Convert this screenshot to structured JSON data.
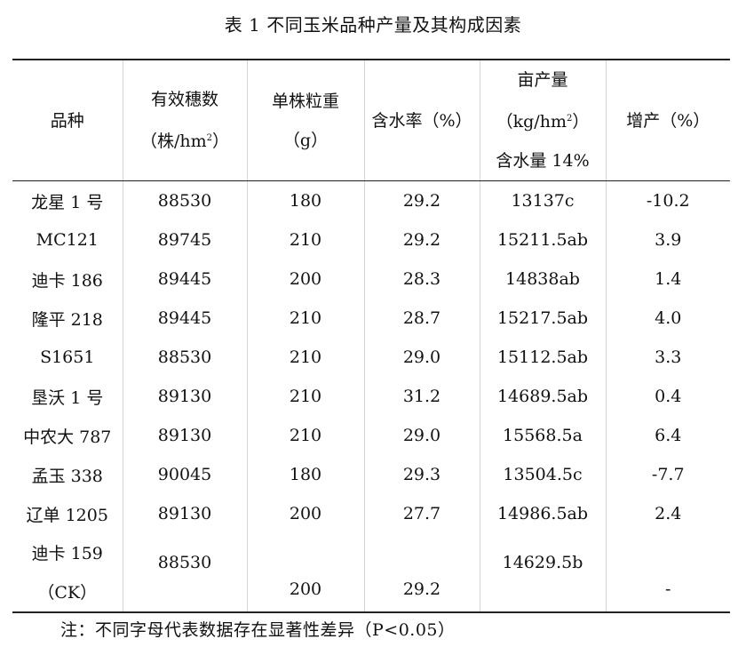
{
  "caption": "表 1 不同玉米品种产量及其构成因素",
  "header": {
    "variety": "品种",
    "ears": {
      "line1": "有效穗数",
      "line2_pre": "（株/hm",
      "line2_sup": "2",
      "line2_post": "）"
    },
    "grain_weight": {
      "line1": "单株粒重",
      "line2": "（g）"
    },
    "moisture": "含水率（%）",
    "yield": {
      "line1": "亩产量",
      "line2_pre": "（kg/hm",
      "line2_sup": "2",
      "line2_post": "）",
      "line3": "含水量 14%"
    },
    "increase": "增产（%）"
  },
  "rows": [
    {
      "variety": "龙星 1 号",
      "ears": "88530",
      "grain_weight": "180",
      "moisture": "29.2",
      "yield": "13137c",
      "increase": "-10.2"
    },
    {
      "variety": "MC121",
      "ears": "89745",
      "grain_weight": "210",
      "moisture": "29.2",
      "yield": "15211.5ab",
      "increase": "3.9"
    },
    {
      "variety": "迪卡 186",
      "ears": "89445",
      "grain_weight": "200",
      "moisture": "28.3",
      "yield": "14838ab",
      "increase": "1.4"
    },
    {
      "variety": "隆平 218",
      "ears": "89445",
      "grain_weight": "210",
      "moisture": "28.7",
      "yield": "15217.5ab",
      "increase": "4.0"
    },
    {
      "variety": "S1651",
      "ears": "88530",
      "grain_weight": "210",
      "moisture": "29.0",
      "yield": "15112.5ab",
      "increase": "3.3"
    },
    {
      "variety": "垦沃 1 号",
      "ears": "89130",
      "grain_weight": "210",
      "moisture": "31.2",
      "yield": "14689.5ab",
      "increase": "0.4"
    },
    {
      "variety": "中农大 787",
      "ears": "89130",
      "grain_weight": "210",
      "moisture": "29.0",
      "yield": "15568.5a",
      "increase": "6.4"
    },
    {
      "variety": "孟玉 338",
      "ears": "90045",
      "grain_weight": "180",
      "moisture": "29.3",
      "yield": "13504.5c",
      "increase": "-7.7"
    },
    {
      "variety": "辽单 1205",
      "ears": "89130",
      "grain_weight": "200",
      "moisture": "27.7",
      "yield": "14986.5ab",
      "increase": "2.4"
    }
  ],
  "last_row": {
    "variety_line1": "迪卡 159",
    "variety_line2": "（CK）",
    "ears": "88530",
    "grain_weight": "200",
    "moisture": "29.2",
    "yield": "14629.5b",
    "increase": "-"
  },
  "note": "注：不同字母代表数据存在显著性差异（P<0.05）"
}
